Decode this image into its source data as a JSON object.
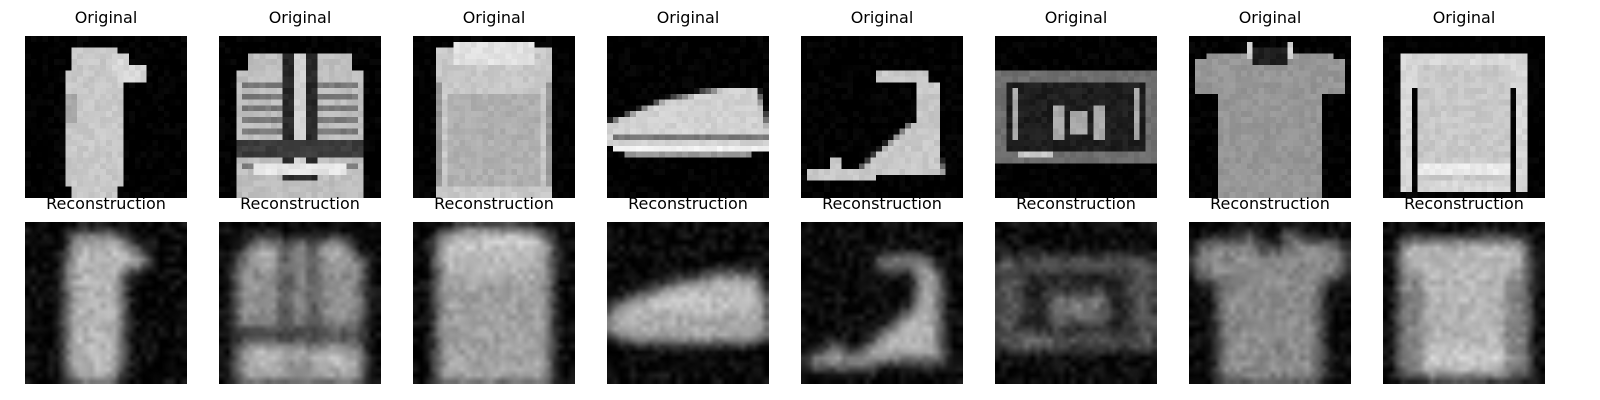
{
  "figure": {
    "rows": [
      {
        "id": "original",
        "title": "Original",
        "items": [
          {
            "icon": "dress-image"
          },
          {
            "icon": "jacket-image"
          },
          {
            "icon": "pullover-image"
          },
          {
            "icon": "sneaker-image"
          },
          {
            "icon": "sandal-image"
          },
          {
            "icon": "bag-image"
          },
          {
            "icon": "tshirt-image"
          },
          {
            "icon": "shirt-image"
          }
        ]
      },
      {
        "id": "reconstruction",
        "title": "Reconstruction",
        "items": [
          {
            "icon": "dress-reconstruction-image"
          },
          {
            "icon": "jacket-reconstruction-image"
          },
          {
            "icon": "pullover-reconstruction-image"
          },
          {
            "icon": "sneaker-reconstruction-image"
          },
          {
            "icon": "sandal-reconstruction-image"
          },
          {
            "icon": "bag-reconstruction-image"
          },
          {
            "icon": "tshirt-reconstruction-image"
          },
          {
            "icon": "shirt-reconstruction-image"
          }
        ]
      }
    ]
  }
}
